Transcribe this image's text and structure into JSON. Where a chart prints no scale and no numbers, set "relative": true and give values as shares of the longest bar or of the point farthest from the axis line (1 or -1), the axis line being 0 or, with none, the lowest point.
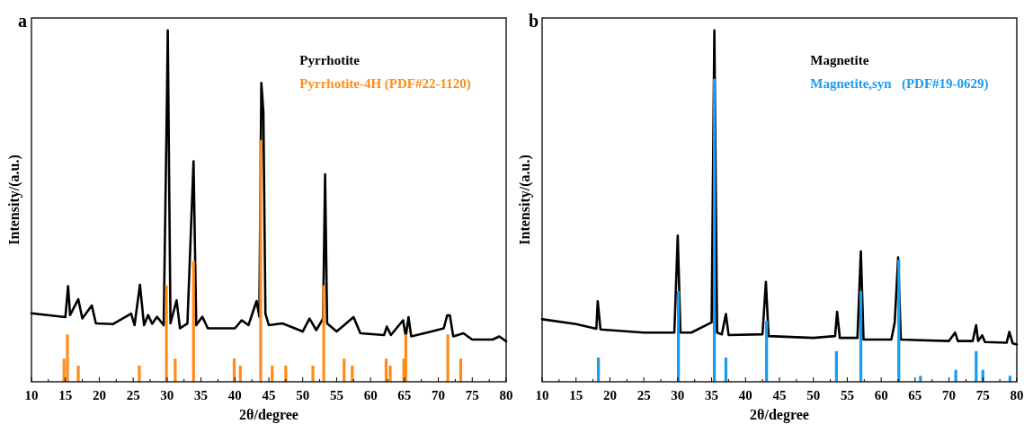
{
  "chart_data": [
    {
      "type": "line",
      "title": "a",
      "xlabel": "2θ/degree",
      "ylabel": "Intensity/(a.u.)",
      "relative": true,
      "legend": "top right",
      "xlim": [
        10,
        80
      ],
      "xticks": [
        10,
        {
          "value": 12.5,
          "label": null
        },
        15,
        {
          "value": 17.5,
          "label": null
        },
        20,
        {
          "value": 22.5,
          "label": null
        },
        25,
        {
          "value": 27.5,
          "label": null
        },
        30,
        {
          "value": 32.5,
          "label": null
        },
        35,
        {
          "value": 37.5,
          "label": null
        },
        40,
        {
          "value": 42.5,
          "label": null
        },
        45,
        {
          "value": 47.5,
          "label": null
        },
        50,
        {
          "value": 52.5,
          "label": null
        },
        55,
        {
          "value": 57.5,
          "label": null
        },
        60,
        {
          "value": 62.5,
          "label": null
        },
        65,
        {
          "value": 67.5,
          "label": null
        },
        70,
        {
          "value": 72.5,
          "label": null
        },
        75,
        {
          "value": 77.5,
          "label": null
        },
        80
      ],
      "series": [
        {
          "name": "Pyrrhotite",
          "color": "#000000",
          "x": [
            10,
            15,
            15.4,
            15.7,
            16.9,
            17.5,
            18.9,
            19.5,
            22,
            24.7,
            25.2,
            26,
            26.6,
            27.2,
            27.8,
            28.5,
            29.5,
            30,
            30.1,
            30.5,
            31.4,
            31.9,
            33,
            33.9,
            34.3,
            35.2,
            36,
            40,
            41,
            42,
            43.2,
            43.6,
            43.9,
            44.2,
            44.5,
            45,
            47,
            50,
            51,
            52,
            53,
            53.3,
            53.6,
            55,
            57.5,
            58.5,
            62,
            62.4,
            63,
            64.8,
            65.2,
            65.6,
            66,
            69,
            70.8,
            71.3,
            71.7,
            72.2,
            73.7,
            75,
            78,
            79,
            80
          ],
          "values": [
            0.195,
            0.184,
            0.272,
            0.19,
            0.235,
            0.18,
            0.217,
            0.166,
            0.164,
            0.194,
            0.161,
            0.276,
            0.161,
            0.19,
            0.165,
            0.185,
            0.161,
            0.839,
            1.0,
            0.166,
            0.232,
            0.152,
            0.166,
            0.627,
            0.161,
            0.185,
            0.152,
            0.152,
            0.175,
            0.161,
            0.23,
            0.185,
            0.85,
            0.767,
            0.194,
            0.161,
            0.166,
            0.143,
            0.18,
            0.147,
            0.18,
            0.59,
            0.166,
            0.143,
            0.184,
            0.138,
            0.133,
            0.157,
            0.133,
            0.175,
            0.129,
            0.184,
            0.129,
            0.143,
            0.152,
            0.189,
            0.189,
            0.129,
            0.138,
            0.12,
            0.12,
            0.129,
            0.115
          ]
        },
        {
          "name": "Pyrrhotite-4H (PDF#22-1120)",
          "type": "bar",
          "color": "#ff8c1a",
          "x": [
            14.8,
            15.3,
            16.9,
            25.9,
            29.9,
            31.2,
            33.9,
            39.9,
            40.8,
            43.8,
            45.5,
            47.5,
            51.5,
            53.1,
            56.1,
            57.3,
            62.3,
            62.9,
            64.9,
            65.2,
            71.4,
            73.3
          ],
          "values": [
            0.066,
            0.135,
            0.046,
            0.046,
            0.274,
            0.066,
            0.343,
            0.066,
            0.046,
            0.688,
            0.046,
            0.046,
            0.046,
            0.274,
            0.066,
            0.046,
            0.066,
            0.046,
            0.066,
            0.135,
            0.135,
            0.066
          ]
        }
      ]
    },
    {
      "type": "line",
      "title": "b",
      "xlabel": "2θ/degree",
      "ylabel": "Intensity/(a.u.)",
      "relative": true,
      "legend": "top right",
      "xlim": [
        10,
        80
      ],
      "xticks": [
        10,
        {
          "value": 12.5,
          "label": null
        },
        15,
        {
          "value": 17.5,
          "label": null
        },
        20,
        {
          "value": 22.5,
          "label": null
        },
        25,
        {
          "value": 27.5,
          "label": null
        },
        30,
        {
          "value": 32.5,
          "label": null
        },
        35,
        {
          "value": 37.5,
          "label": null
        },
        40,
        {
          "value": 42.5,
          "label": null
        },
        45,
        {
          "value": 47.5,
          "label": null
        },
        50,
        {
          "value": 52.5,
          "label": null
        },
        55,
        {
          "value": 57.5,
          "label": null
        },
        60,
        {
          "value": 62.5,
          "label": null
        },
        65,
        {
          "value": 67.5,
          "label": null
        },
        70,
        {
          "value": 72.5,
          "label": null
        },
        75,
        {
          "value": 77.5,
          "label": null
        },
        80
      ],
      "series": [
        {
          "name": "Magnetite",
          "color": "#000000",
          "x": [
            10,
            15,
            18,
            18.2,
            18.6,
            25,
            29.5,
            30,
            30.4,
            32,
            35,
            35.4,
            35.8,
            36.5,
            37.1,
            37.5,
            42.5,
            43,
            43.4,
            50,
            53.2,
            53.5,
            53.9,
            56.5,
            57,
            57.4,
            61.5,
            62,
            62.5,
            62.9,
            70,
            70.9,
            71.3,
            73.5,
            74,
            74.3,
            74.9,
            75.3,
            78.5,
            78.9,
            79.4,
            80
          ],
          "values": [
            0.178,
            0.164,
            0.151,
            0.229,
            0.149,
            0.14,
            0.14,
            0.416,
            0.14,
            0.14,
            0.169,
            1.0,
            0.14,
            0.135,
            0.193,
            0.133,
            0.135,
            0.284,
            0.13,
            0.125,
            0.13,
            0.199,
            0.125,
            0.125,
            0.371,
            0.12,
            0.12,
            0.169,
            0.354,
            0.12,
            0.116,
            0.14,
            0.116,
            0.116,
            0.161,
            0.116,
            0.132,
            0.113,
            0.111,
            0.142,
            0.109,
            0.106
          ]
        },
        {
          "name": "Magnetite,syn   (PDF#19-0629)",
          "type": "bar",
          "color": "#1a9bf0",
          "x": [
            18.3,
            30.1,
            35.4,
            37.1,
            43.1,
            53.4,
            57,
            62.6,
            65.8,
            71,
            74,
            75,
            79
          ],
          "values": [
            0.069,
            0.258,
            0.862,
            0.069,
            0.173,
            0.087,
            0.258,
            0.347,
            0.017,
            0.034,
            0.087,
            0.034,
            0.017
          ]
        }
      ]
    }
  ]
}
